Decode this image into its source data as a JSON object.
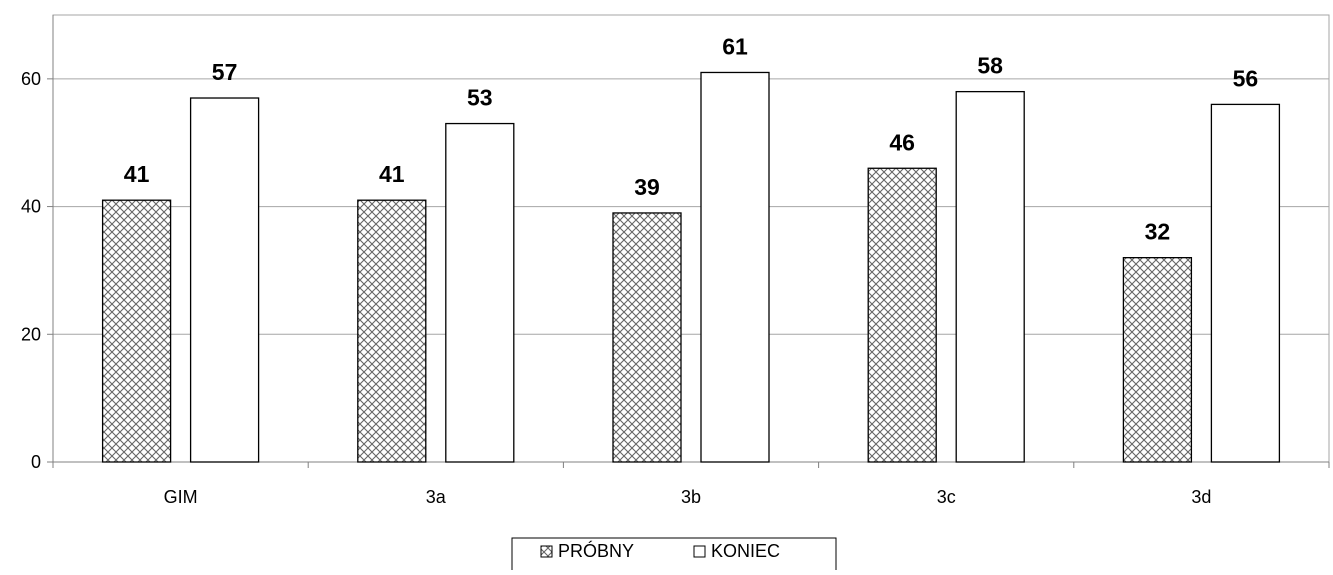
{
  "chart_data": {
    "type": "bar",
    "categories": [
      "GIM",
      "3a",
      "3b",
      "3c",
      "3d"
    ],
    "series": [
      {
        "name": "PRÓBNY",
        "values": [
          41,
          41,
          39,
          46,
          32
        ],
        "display_labels": [
          "41",
          "41",
          "39",
          "46",
          "32"
        ],
        "fill": "crosshatch"
      },
      {
        "name": "KONIEC",
        "values": [
          57,
          53,
          61,
          58,
          56
        ],
        "display_labels": [
          "57",
          "53",
          "61",
          "58",
          "56"
        ],
        "fill": "white"
      }
    ],
    "yticks": [
      "0",
      "20",
      "40",
      "60"
    ],
    "ylim": [
      0,
      70
    ],
    "grid": true,
    "legend_position": "bottom-center",
    "colors": {
      "bar_outline": "#000000",
      "hatch": "#666666",
      "grid": "#a6a6a6",
      "axis": "#808080"
    }
  }
}
